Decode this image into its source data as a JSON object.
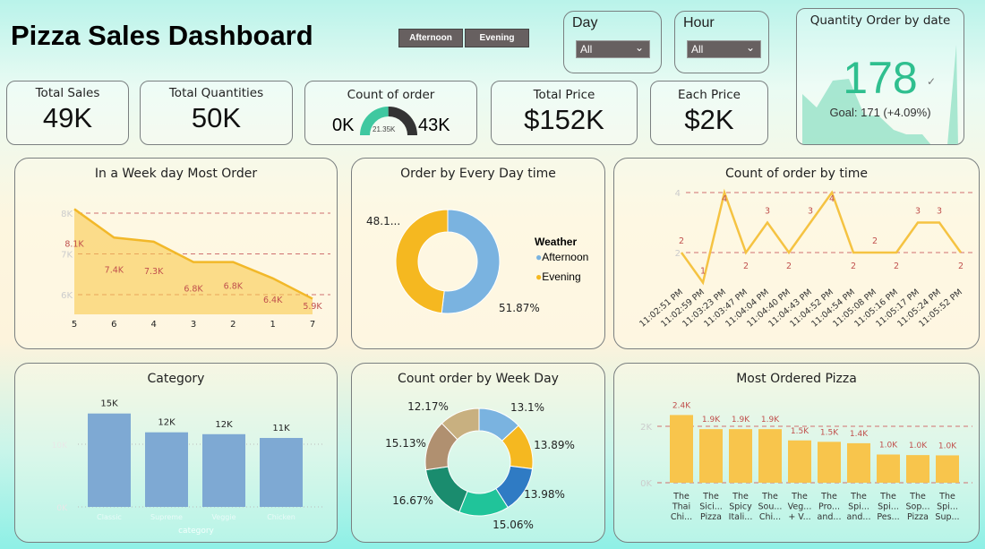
{
  "header": {
    "title": "Pizza Sales Dashboard"
  },
  "time_buttons": [
    "Afternoon",
    "Evening"
  ],
  "slicers": [
    {
      "label": "Day",
      "value": "All"
    },
    {
      "label": "Hour",
      "value": "All"
    }
  ],
  "kpis": {
    "total_sales": {
      "label": "Total Sales",
      "value": "49K"
    },
    "total_quantities": {
      "label": "Total Quantities",
      "value": "50K"
    },
    "count_of_order": {
      "label": "Count of order",
      "min": "0K",
      "max": "43K",
      "value": "21.35K",
      "fraction": 0.4965
    },
    "total_price": {
      "label": "Total Price",
      "value": "$152K"
    },
    "each_price": {
      "label": "Each Price",
      "value": "$2K"
    }
  },
  "quantity_card": {
    "title": "Quantity Order by date",
    "value": "178",
    "goal": "Goal: 171 (+4.09%)",
    "accent": "#2fbf8f"
  },
  "colors": {
    "yellow": "#f7c34a",
    "blue": "#7ba9d4",
    "red_label": "#c0504d"
  },
  "chart_data": [
    {
      "id": "weekday",
      "type": "area",
      "title": "In a Week day Most Order",
      "categories": [
        "5",
        "6",
        "4",
        "3",
        "2",
        "1",
        "7"
      ],
      "values": [
        8.1,
        7.4,
        7.3,
        6.8,
        6.8,
        6.4,
        5.9
      ],
      "labels": [
        "8.1K",
        "7.4K",
        "7.3K",
        "6.8K",
        "6.8K",
        "6.4K",
        "5.9K"
      ],
      "yticks": [
        "6K",
        "7K",
        "8K"
      ],
      "ylim": [
        5.5,
        8.5
      ],
      "grid": true
    },
    {
      "id": "daytime",
      "type": "pie",
      "title": "Order by Every Day time",
      "legend_title": "Weather",
      "categories": [
        "Afternoon",
        "Evening"
      ],
      "values": [
        51.87,
        48.13
      ],
      "labels": [
        "51.87%",
        "48.1..."
      ],
      "colors": [
        "#7ab3e0",
        "#f5b820"
      ],
      "legend": "right"
    },
    {
      "id": "bytime",
      "type": "line",
      "title": "Count of order by time",
      "categories": [
        "11:02:51 PM",
        "11:02:59 PM",
        "11:03:23 PM",
        "11:03:47 PM",
        "11:04:04 PM",
        "11:04:40 PM",
        "11:04:43 PM",
        "11:04:52 PM",
        "11:04:54 PM",
        "11:05:08 PM",
        "11:05:16 PM",
        "11:05:17 PM",
        "11:05:24 PM",
        "11:05:52 PM"
      ],
      "values": [
        2,
        1,
        4,
        2,
        3,
        2,
        3,
        4,
        2,
        2,
        2,
        3,
        3,
        2
      ],
      "yticks": [
        "2",
        "4"
      ],
      "grid": true
    },
    {
      "id": "category",
      "type": "bar",
      "title": "Category",
      "categories": [
        "Classic",
        "Supreme",
        "Veggie",
        "Chicken"
      ],
      "values": [
        14.9,
        11.9,
        11.6,
        11.0
      ],
      "labels": [
        "15K",
        "12K",
        "12K",
        "11K"
      ],
      "xlabel": "category",
      "yticks": [
        "0K",
        "10K"
      ],
      "grid": true
    },
    {
      "id": "weekpie",
      "type": "pie",
      "title": "Count order by Week Day",
      "values": [
        13.1,
        13.89,
        13.98,
        15.06,
        16.67,
        15.13,
        12.17
      ],
      "labels": [
        "13.1%",
        "13.89%",
        "13.98%",
        "15.06%",
        "16.67%",
        "15.13%",
        "12.17%"
      ],
      "colors": [
        "#7ab3e0",
        "#f5b820",
        "#2f7bc4",
        "#20c49a",
        "#1a8c6e",
        "#b09070",
        "#c8b080"
      ]
    },
    {
      "id": "pizza",
      "type": "bar",
      "title": "Most Ordered Pizza",
      "categories": [
        [
          "The",
          "Thai",
          "Chi..."
        ],
        [
          "The",
          "Sici...",
          "Pizza"
        ],
        [
          "The",
          "Spicy",
          "Itali..."
        ],
        [
          "The",
          "Sou...",
          "Chi..."
        ],
        [
          "The",
          "Veg...",
          "+ V..."
        ],
        [
          "The",
          "Pro...",
          "and..."
        ],
        [
          "The",
          "Spi...",
          "and..."
        ],
        [
          "The",
          "Spi...",
          "Pes..."
        ],
        [
          "The",
          "Sop...",
          "Pizza"
        ],
        [
          "The",
          "Spi...",
          "Sup..."
        ]
      ],
      "values": [
        2.4,
        1.9,
        1.9,
        1.9,
        1.5,
        1.45,
        1.4,
        1.0,
        0.98,
        0.97
      ],
      "labels": [
        "2.4K",
        "1.9K",
        "1.9K",
        "1.9K",
        "1.5K",
        "1.5K",
        "1.4K",
        "1.0K",
        "1.0K",
        "1.0K"
      ],
      "yticks": [
        "0K",
        "2K"
      ],
      "grid": true
    }
  ]
}
